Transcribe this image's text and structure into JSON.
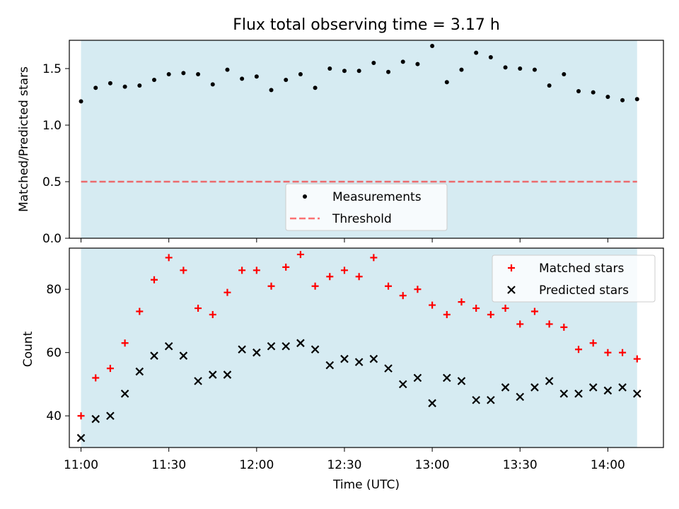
{
  "title": "Flux total observing time = 3.17 h",
  "colors": {
    "span": "#add8e6",
    "measurement": "#000000",
    "threshold": "#ff0000",
    "matched": "#ff0000",
    "predicted": "#000000"
  },
  "chart_data": [
    {
      "type": "scatter",
      "ylabel": "Matched/Predicted stars",
      "xlabel": "",
      "ylim": [
        0,
        1.75
      ],
      "yticks": [
        0.0,
        0.5,
        1.0,
        1.5
      ],
      "ytick_labels": [
        "0.0",
        "0.5",
        "1.0",
        "1.5"
      ],
      "highlight_span": [
        "11:00",
        "14:10"
      ],
      "legend": {
        "position": "lower center",
        "entries": [
          "Measurements",
          "Threshold"
        ]
      },
      "series": [
        {
          "name": "Measurements",
          "marker": "dot",
          "x": [
            "11:00",
            "11:05",
            "11:10",
            "11:15",
            "11:20",
            "11:25",
            "11:30",
            "11:35",
            "11:40",
            "11:45",
            "11:50",
            "11:55",
            "12:00",
            "12:05",
            "12:10",
            "12:15",
            "12:20",
            "12:25",
            "12:30",
            "12:35",
            "12:40",
            "12:45",
            "12:50",
            "12:55",
            "13:00",
            "13:05",
            "13:10",
            "13:15",
            "13:20",
            "13:25",
            "13:30",
            "13:35",
            "13:40",
            "13:45",
            "13:50",
            "13:55",
            "14:00",
            "14:05",
            "14:10"
          ],
          "y": [
            1.21,
            1.33,
            1.37,
            1.34,
            1.35,
            1.4,
            1.45,
            1.46,
            1.45,
            1.36,
            1.49,
            1.41,
            1.43,
            1.31,
            1.4,
            1.45,
            1.33,
            1.5,
            1.48,
            1.48,
            1.55,
            1.47,
            1.56,
            1.54,
            1.7,
            1.38,
            1.49,
            1.64,
            1.6,
            1.51,
            1.5,
            1.49,
            1.35,
            1.45,
            1.3,
            1.29,
            1.25,
            1.22,
            1.23
          ]
        },
        {
          "name": "Threshold",
          "marker": "dashed-line",
          "x": [
            "11:00",
            "14:10"
          ],
          "y": [
            0.5,
            0.5
          ]
        }
      ]
    },
    {
      "type": "scatter",
      "ylabel": "Count",
      "xlabel": "Time (UTC)",
      "ylim": [
        30,
        93
      ],
      "yticks": [
        40,
        60,
        80
      ],
      "ytick_labels": [
        "40",
        "60",
        "80"
      ],
      "xlim": [
        "10:56",
        "14:19"
      ],
      "xticks": [
        "11:00",
        "11:30",
        "12:00",
        "12:30",
        "13:00",
        "13:30",
        "14:00"
      ],
      "xtick_labels": [
        "11:00",
        "11:30",
        "12:00",
        "12:30",
        "13:00",
        "13:30",
        "14:00"
      ],
      "highlight_span": [
        "11:00",
        "14:10"
      ],
      "legend": {
        "position": "upper right",
        "entries": [
          "Matched stars",
          "Predicted stars"
        ]
      },
      "series": [
        {
          "name": "Matched stars",
          "marker": "plus",
          "x": [
            "11:00",
            "11:05",
            "11:10",
            "11:15",
            "11:20",
            "11:25",
            "11:30",
            "11:35",
            "11:40",
            "11:45",
            "11:50",
            "11:55",
            "12:00",
            "12:05",
            "12:10",
            "12:15",
            "12:20",
            "12:25",
            "12:30",
            "12:35",
            "12:40",
            "12:45",
            "12:50",
            "12:55",
            "13:00",
            "13:05",
            "13:10",
            "13:15",
            "13:20",
            "13:25",
            "13:30",
            "13:35",
            "13:40",
            "13:45",
            "13:50",
            "13:55",
            "14:00",
            "14:05",
            "14:10"
          ],
          "y": [
            40,
            52,
            55,
            63,
            73,
            83,
            90,
            86,
            74,
            72,
            79,
            86,
            86,
            81,
            87,
            91,
            81,
            84,
            86,
            84,
            90,
            81,
            78,
            80,
            75,
            72,
            76,
            74,
            72,
            74,
            69,
            73,
            69,
            68,
            61,
            63,
            60,
            60,
            58
          ]
        },
        {
          "name": "Predicted stars",
          "marker": "x",
          "x": [
            "11:00",
            "11:05",
            "11:10",
            "11:15",
            "11:20",
            "11:25",
            "11:30",
            "11:35",
            "11:40",
            "11:45",
            "11:50",
            "11:55",
            "12:00",
            "12:05",
            "12:10",
            "12:15",
            "12:20",
            "12:25",
            "12:30",
            "12:35",
            "12:40",
            "12:45",
            "12:50",
            "12:55",
            "13:00",
            "13:05",
            "13:10",
            "13:15",
            "13:20",
            "13:25",
            "13:30",
            "13:35",
            "13:40",
            "13:45",
            "13:50",
            "13:55",
            "14:00",
            "14:05",
            "14:10"
          ],
          "y": [
            33,
            39,
            40,
            47,
            54,
            59,
            62,
            59,
            51,
            53,
            53,
            61,
            60,
            62,
            62,
            63,
            61,
            56,
            58,
            57,
            58,
            55,
            50,
            52,
            44,
            52,
            51,
            45,
            45,
            49,
            46,
            49,
            51,
            47,
            47,
            49,
            48,
            49,
            47
          ]
        }
      ]
    }
  ]
}
